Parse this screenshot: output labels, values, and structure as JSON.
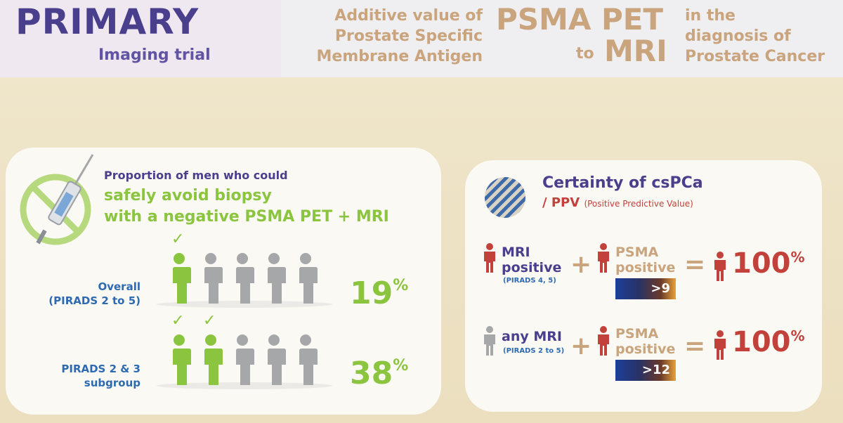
{
  "header": {
    "primary": "PRIMARY",
    "subtitle": "Imaging trial",
    "title_a": [
      "Additive value of",
      "Prostate Specific",
      "Membrane Antigen"
    ],
    "title_big1": "PSMA PET",
    "title_to": "to",
    "title_big2": "MRI",
    "title_c": [
      "in the",
      "diagnosis of",
      "Prostate Cancer"
    ]
  },
  "left_panel": {
    "proportion": "Proportion of men who could",
    "safe_line1": "safely avoid biopsy",
    "safe_line2": "with a negative PSMA PET + MRI",
    "rows": [
      {
        "label1": "Overall",
        "label2": "(PIRADS 2 to 5)",
        "percent": "19",
        "green_count": 1
      },
      {
        "label1": "PIRADS 2 & 3",
        "label2": "subgroup",
        "percent": "38",
        "green_count": 2
      }
    ],
    "percent_sign": "%",
    "check": "✓"
  },
  "right_panel": {
    "title": "Certainty of csPCa",
    "ppv": "/ PPV",
    "ppv_sub": "(Positive Predictive Value)",
    "rows": [
      {
        "mri_line1": "MRI",
        "mri_line2": "positive",
        "mri_sub": "(PIRADS 4, 5)",
        "psma1": "PSMA",
        "psma2": "positive",
        "bar": ">9",
        "result": "100"
      },
      {
        "mri_line1": "any MRI",
        "mri_line2": "",
        "mri_sub": "(PIRADS 2 to 5)",
        "psma1": "PSMA",
        "psma2": "positive",
        "bar": ">12",
        "result": "100"
      }
    ],
    "plus": "+",
    "eq": "=",
    "percent_sign": "%"
  },
  "colors": {
    "green": "#8bc53f",
    "grey": "#a6a7a9",
    "red": "#c2413a",
    "purple": "#4a3f8d",
    "tan": "#c9a47d",
    "blue": "#2d6ab1"
  }
}
